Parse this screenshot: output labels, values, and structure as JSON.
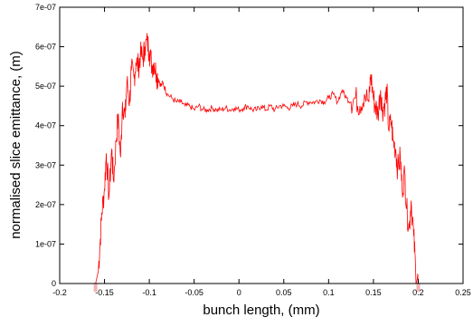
{
  "chart_data": {
    "type": "line",
    "title": "",
    "xlabel": "bunch length, (mm)",
    "ylabel": "normalised slice emittance, (m)",
    "xlim": [
      -0.2,
      0.25
    ],
    "ylim": [
      0,
      7e-07
    ],
    "x_ticks": [
      -0.2,
      -0.15,
      -0.1,
      -0.05,
      0,
      0.05,
      0.1,
      0.15,
      0.2,
      0.25
    ],
    "x_tick_labels": [
      "-0.2",
      "-0.15",
      "-0.1",
      "-0.05",
      "0",
      "0.05",
      "0.1",
      "0.15",
      "0.2",
      "0.25"
    ],
    "y_ticks": [
      0,
      1e-07,
      2e-07,
      3e-07,
      4e-07,
      5e-07,
      6e-07,
      7e-07
    ],
    "y_tick_labels": [
      "0",
      "1e-07",
      "2e-07",
      "3e-07",
      "4e-07",
      "5e-07",
      "6e-07",
      "7e-07"
    ],
    "grid": false,
    "line_color": "#ff0000",
    "series": [
      {
        "x": [
          -0.16,
          -0.157,
          -0.155,
          -0.153,
          -0.15,
          -0.148,
          -0.145,
          -0.142,
          -0.14,
          -0.137,
          -0.135,
          -0.132,
          -0.13,
          -0.127,
          -0.125,
          -0.122,
          -0.12,
          -0.117,
          -0.115,
          -0.112,
          -0.11,
          -0.107,
          -0.105,
          -0.102,
          -0.1,
          -0.097,
          -0.095,
          -0.092,
          -0.09,
          -0.087,
          -0.085,
          -0.082,
          -0.08,
          -0.075,
          -0.07,
          -0.065,
          -0.06,
          -0.055,
          -0.05,
          -0.045,
          -0.04,
          -0.035,
          -0.03,
          -0.025,
          -0.02,
          -0.015,
          -0.01,
          -0.005,
          0,
          0.005,
          0.01,
          0.015,
          0.02,
          0.025,
          0.03,
          0.035,
          0.04,
          0.045,
          0.05,
          0.055,
          0.06,
          0.065,
          0.07,
          0.075,
          0.08,
          0.085,
          0.09,
          0.095,
          0.1,
          0.105,
          0.11,
          0.115,
          0.12,
          0.125,
          0.13,
          0.135,
          0.14,
          0.145,
          0.147,
          0.15,
          0.152,
          0.155,
          0.158,
          0.16,
          0.163,
          0.165,
          0.167,
          0.17,
          0.172,
          0.175,
          0.177,
          0.18,
          0.182,
          0.185,
          0.187,
          0.19,
          0.192,
          0.195,
          0.197,
          0.2
        ],
        "y": [
          0,
          3e-08,
          1e-07,
          1.8e-07,
          2.4e-07,
          3.3e-07,
          2.2e-07,
          3.4e-07,
          2.6e-07,
          3.6e-07,
          4.2e-07,
          3.2e-07,
          4.6e-07,
          4.2e-07,
          5.1e-07,
          4.6e-07,
          5.4e-07,
          5.2e-07,
          5.6e-07,
          5.5e-07,
          5.8e-07,
          5.7e-07,
          6e-07,
          6.1e-07,
          5.9e-07,
          5.5e-07,
          5.6e-07,
          5.3e-07,
          5.2e-07,
          5e-07,
          5.1e-07,
          4.9e-07,
          4.8e-07,
          4.7e-07,
          4.6e-07,
          4.6e-07,
          4.5e-07,
          4.5e-07,
          4.4e-07,
          4.5e-07,
          4.4e-07,
          4.4e-07,
          4.45e-07,
          4.4e-07,
          4.4e-07,
          4.45e-07,
          4.4e-07,
          4.45e-07,
          4.4e-07,
          4.45e-07,
          4.5e-07,
          4.4e-07,
          4.4e-07,
          4.5e-07,
          4.4e-07,
          4.5e-07,
          4.4e-07,
          4.5e-07,
          4.5e-07,
          4.45e-07,
          4.5e-07,
          4.55e-07,
          4.5e-07,
          4.6e-07,
          4.6e-07,
          4.6e-07,
          4.65e-07,
          4.6e-07,
          4.7e-07,
          4.8e-07,
          4.6e-07,
          4.9e-07,
          4.7e-07,
          4.6e-07,
          4.7e-07,
          4.5e-07,
          4.8e-07,
          4.6e-07,
          5.3e-07,
          4.7e-07,
          4.5e-07,
          4.3e-07,
          4.9e-07,
          4.4e-07,
          4.6e-07,
          4.9e-07,
          3.9e-07,
          4.1e-07,
          3.6e-07,
          3.4e-07,
          2.9e-07,
          3.2e-07,
          2.4e-07,
          2.8e-07,
          1.9e-07,
          1.4e-07,
          2.1e-07,
          1.2e-07,
          4e-08,
          0
        ]
      }
    ]
  }
}
